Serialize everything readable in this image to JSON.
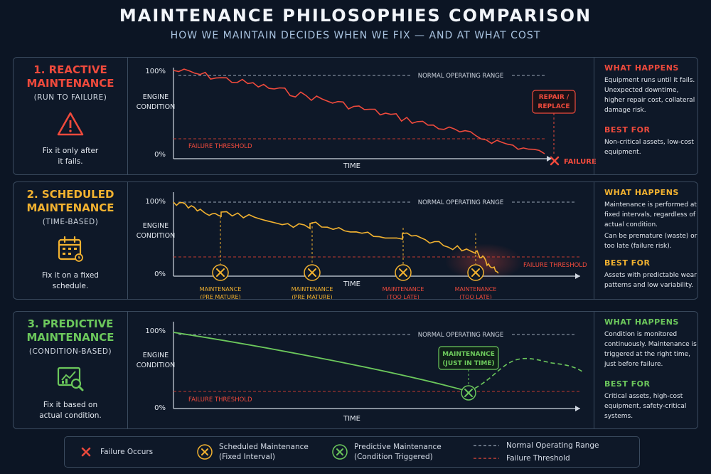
{
  "title": "MAINTENANCE PHILOSOPHIES COMPARISON",
  "subtitle": "HOW WE MAINTAIN DECIDES WHEN WE FIX — AND AT WHAT COST",
  "colors": {
    "reactive": "#ef4a3c",
    "scheduled": "#f2b230",
    "predictive": "#6cc85c",
    "background": "#0c1524"
  },
  "axis": {
    "y_top": "100%",
    "y_bottom": "0%",
    "y_label_1": "ENGINE",
    "y_label_2": "CONDITION",
    "x_label": "TIME",
    "normal_range": "NORMAL OPERATING RANGE",
    "failure_threshold": "FAILURE THRESHOLD"
  },
  "reactive": {
    "title_1": "1. REACTIVE",
    "title_2": "MAINTENANCE",
    "subtitle": "(RUN TO FAILURE)",
    "icon": "warning-triangle-icon",
    "desc_1": "Fix it only after",
    "desc_2": "it fails.",
    "repair_label_1": "REPAIR /",
    "repair_label_2": "REPLACE",
    "failure_label": "FAILURE",
    "what_heading": "WHAT HAPPENS",
    "what_lines": [
      "Equipment runs until it fails.",
      "Unexpected downtime,",
      "higher repair cost, collateral",
      "damage risk."
    ],
    "best_heading": "BEST FOR",
    "best_lines": [
      "Non-critical assets, low-cost",
      "equipment."
    ]
  },
  "scheduled": {
    "title_1": "2. SCHEDULED",
    "title_2": "MAINTENANCE",
    "subtitle": "(TIME-BASED)",
    "icon": "calendar-icon",
    "desc_1": "Fix it on a fixed",
    "desc_2": "schedule.",
    "maintenance_events": [
      {
        "label_1": "MAINTENANCE",
        "label_2": "(PRE MATURE)"
      },
      {
        "label_1": "MAINTENANCE",
        "label_2": "(PRE MATURE)"
      },
      {
        "label_1": "MAINTENANCE",
        "label_2": "(TOO LATE)"
      },
      {
        "label_1": "MAINTENANCE",
        "label_2": "(TOO LATE)"
      }
    ],
    "what_heading": "WHAT HAPPENS",
    "what_lines": [
      "Maintenance is performed at",
      "fixed intervals, regardless of",
      "actual condition."
    ],
    "what_lines_2": [
      "Can be premature (waste) or",
      "too late (failure risk)."
    ],
    "best_heading": "BEST FOR",
    "best_lines": [
      "Assets with predictable wear",
      "patterns and low variability."
    ]
  },
  "predictive": {
    "title_1": "3. PREDICTIVE",
    "title_2": "MAINTENANCE",
    "subtitle": "(CONDITION-BASED)",
    "icon": "analytics-magnifier-icon",
    "desc_1": "Fix it based on",
    "desc_2": "actual condition.",
    "jit_label_1": "MAINTENANCE",
    "jit_label_2": "(JUST IN TIME)",
    "what_heading": "WHAT HAPPENS",
    "what_lines": [
      "Condition is monitored",
      "continuously. Maintenance is",
      "triggered at the right time,",
      "just before failure."
    ],
    "best_heading": "BEST FOR",
    "best_lines": [
      "Critical assets, high-cost",
      "equipment, safety-critical",
      "systems."
    ]
  },
  "legend": {
    "failure": "Failure Occurs",
    "scheduled_1": "Scheduled Maintenance",
    "scheduled_2": "(Fixed Interval)",
    "predictive_1": "Predictive Maintenance",
    "predictive_2": "(Condition Triggered)",
    "normal": "Normal Operating Range",
    "threshold": "Failure Threshold"
  }
}
